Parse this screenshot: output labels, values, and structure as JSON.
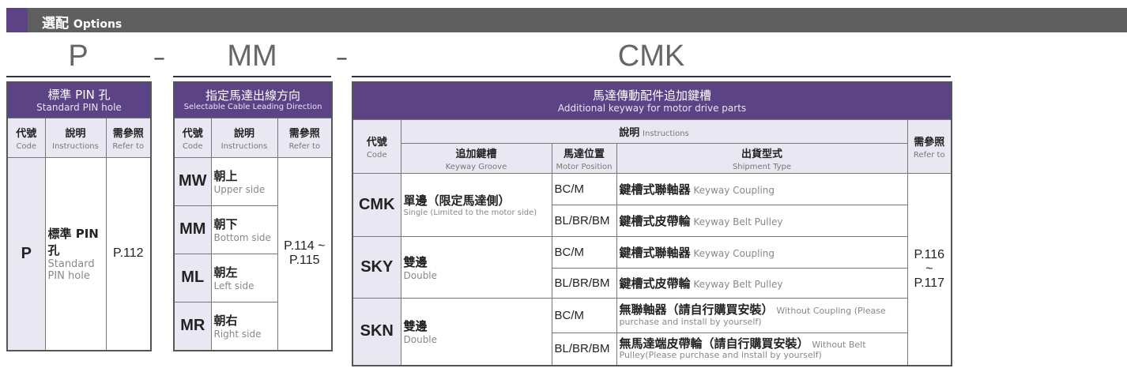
{
  "header": {
    "title_zh": "選配",
    "title_en": "Options"
  },
  "segments": {
    "p": "P",
    "mm": "MM",
    "cmk": "CMK",
    "sep": "–"
  },
  "table_p": {
    "title_zh": "標準 PIN 孔",
    "title_en": "Standard PIN hole",
    "cols": [
      {
        "zh": "代號",
        "en": "Code"
      },
      {
        "zh": "說明",
        "en": "Instructions"
      },
      {
        "zh": "需參照",
        "en": "Refer to"
      }
    ],
    "row": {
      "code": "P",
      "desc_zh": "標準 PIN 孔",
      "desc_en": "Standard PIN hole",
      "ref": "P.112"
    }
  },
  "table_mm": {
    "title_zh": "指定馬達出線方向",
    "title_en": "Selectable Cable Leading Direction",
    "cols": [
      {
        "zh": "代號",
        "en": "Code"
      },
      {
        "zh": "說明",
        "en": "Instructions"
      },
      {
        "zh": "需參照",
        "en": "Refer to"
      }
    ],
    "ref": "P.114 ~ P.115",
    "rows": [
      {
        "code": "MW",
        "zh": "朝上",
        "en": "Upper side"
      },
      {
        "code": "MM",
        "zh": "朝下",
        "en": "Bottom side"
      },
      {
        "code": "ML",
        "zh": "朝左",
        "en": "Left side"
      },
      {
        "code": "MR",
        "zh": "朝右",
        "en": "Right side"
      }
    ]
  },
  "table_cmk": {
    "title_zh": "馬達傳動配件追加鍵槽",
    "title_en": "Additional keyway for motor drive parts",
    "code": {
      "zh": "代號",
      "en": "Code"
    },
    "instr": {
      "zh": "說明",
      "en": "Instructions"
    },
    "refer": {
      "zh": "需參照",
      "en": "Refer to"
    },
    "sub": [
      {
        "zh": "追加鍵槽",
        "en": "Keyway Groove"
      },
      {
        "zh": "馬達位置",
        "en": "Motor Position"
      },
      {
        "zh": "出貨型式",
        "en": "Shipment Type"
      }
    ],
    "ref": "P.116 ~ P.117",
    "groups": [
      {
        "code": "CMK",
        "zh": "單邊（限定馬達側）",
        "en": "Single (Limited to the motor side)",
        "rows": [
          {
            "pos": "BC/M",
            "zh": "鍵槽式聯軸器",
            "en": "Keyway Coupling"
          },
          {
            "pos": "BL/BR/BM",
            "zh": "鍵槽式皮帶輪",
            "en": "Keyway Belt Pulley"
          }
        ]
      },
      {
        "code": "SKY",
        "zh": "雙邊",
        "en": "Double",
        "rows": [
          {
            "pos": "BC/M",
            "zh": "鍵槽式聯軸器",
            "en": "Keyway Coupling"
          },
          {
            "pos": "BL/BR/BM",
            "zh": "鍵槽式皮帶輪",
            "en": "Keyway Belt Pulley"
          }
        ]
      },
      {
        "code": "SKN",
        "zh": "雙邊",
        "en": "Double",
        "rows": [
          {
            "pos": "BC/M",
            "zh": "無聯軸器（請自行購買安裝）",
            "en": "Without Coupling (Please purchase and install by yourself)"
          },
          {
            "pos": "BL/BR/BM",
            "zh": "無馬達端皮帶輪（請自行購買安裝）",
            "en": "Without Belt Pulley(Please purchase and install by yourself)"
          }
        ]
      }
    ]
  }
}
